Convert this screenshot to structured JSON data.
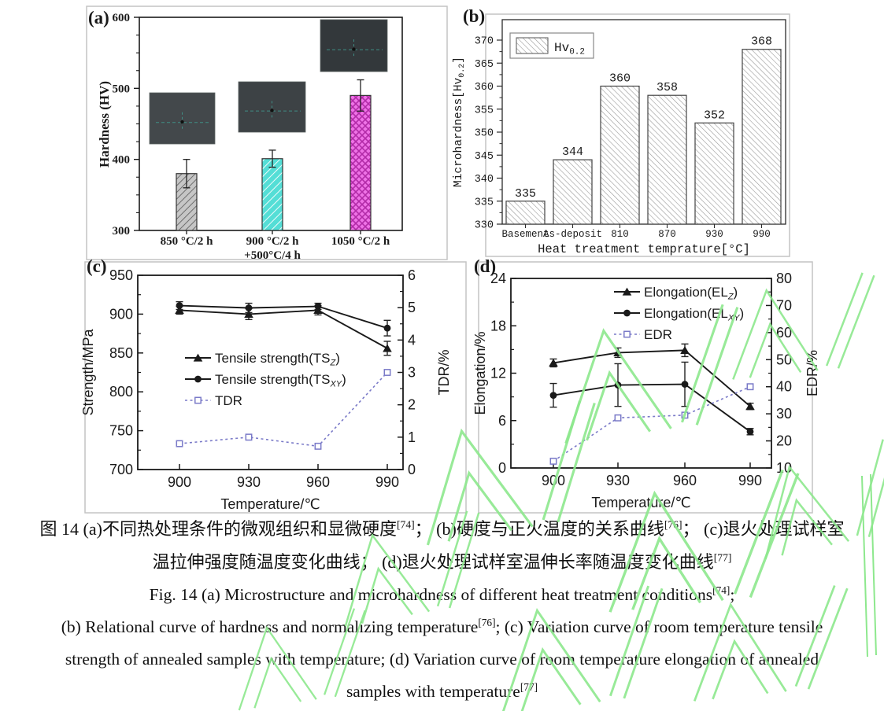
{
  "caption": {
    "zh_lines": [
      "图 14 (a)不同热处理条件的微观组织和显微硬度[74]； (b)硬度与正火温度的关系曲线[76]； (c)退火处理试样室",
      "温拉伸强度随温度变化曲线； (d)退火处理试样室温伸长率随温度变化曲线[77]"
    ],
    "en_lines": [
      "Fig. 14 (a) Microstructure and microhardness of different heat treatment conditions[74];",
      "(b) Relational curve of hardness and normalizing temperature[76]; (c) Variation curve of room temperature tensile",
      "strength of annealed samples with temperature; (d) Variation curve of room temperature elongation of annealed",
      "samples with temperature[77]"
    ]
  },
  "colors": {
    "axis_black": "#1a1a1a",
    "tdr_edr_line": "#7a7ac8",
    "bar_gray": "#c6c6c6",
    "bar_gray_hatch": "#555555",
    "bar_cyan": "#54ded6",
    "bar_magenta": "#ef72e6",
    "bar_magenta_hatch": "#b22ba8",
    "b_bar_bg": "#ffffff",
    "b_bar_hatch": "#999999",
    "panel_border": "#c4c4c4",
    "watermark_green": "#8de88d",
    "inset_fills": [
      "#43484b",
      "#3d4245",
      "#33383b"
    ]
  },
  "chart_data": [
    {
      "panel": "a",
      "panel_label": "(a)",
      "type": "bar",
      "ylabel": "Hardness (HV)",
      "ylim": [
        300,
        600
      ],
      "yticks": [
        300,
        400,
        500,
        600
      ],
      "categories": [
        "850 °C/2 h",
        "900 °C/2 h|+500°C/4 h",
        "1050 °C/2 h"
      ],
      "values": [
        380,
        401,
        490
      ],
      "errors": [
        20,
        12,
        22
      ],
      "bar_styles": [
        "gray-diagonal",
        "cyan-diagonal",
        "magenta-cross"
      ],
      "insets": "three dark optical micrograph thumbnails with indent marks",
      "grid": false
    },
    {
      "panel": "b",
      "panel_label": "(b)",
      "type": "bar",
      "legend": [
        "Hv~0.2~"
      ],
      "legend_position": "top-left-box",
      "ylabel": "Microhardness[Hv~0.2~]",
      "xlabel": "Heat treatment temprature[°C]",
      "ylim": [
        330,
        372
      ],
      "yticks": [
        330,
        335,
        340,
        345,
        350,
        355,
        360,
        365,
        370
      ],
      "categories": [
        "Basement",
        "As-deposit",
        "810",
        "870",
        "930",
        "990"
      ],
      "values": [
        335,
        344,
        360,
        358,
        352,
        368
      ],
      "value_labels": [
        335,
        344,
        360,
        358,
        352,
        368
      ],
      "bar_style": "gray-diagonal-on-white",
      "grid": false
    },
    {
      "panel": "c",
      "panel_label": "(c)",
      "type": "line",
      "x": [
        900,
        930,
        960,
        990
      ],
      "xlabel": "Temperature/℃",
      "ylabel_left": "Strength/MPa",
      "ylabel_right": "TDR/%",
      "ylim_left": [
        700,
        950
      ],
      "yticks_left": [
        700,
        750,
        800,
        850,
        900,
        950
      ],
      "ylim_right": [
        0,
        6
      ],
      "yticks_right": [
        0,
        1,
        2,
        3,
        4,
        5,
        6
      ],
      "legend_position": "middle-left",
      "series": [
        {
          "name": "Tensile strength(TS~Z~)",
          "axis": "left",
          "marker": "triangle",
          "line": "solid",
          "values": [
            905,
            900,
            905,
            856
          ],
          "errors": [
            5,
            7,
            6,
            9
          ]
        },
        {
          "name": "Tensile strength(TS~XY~)",
          "axis": "left",
          "marker": "circle",
          "line": "solid",
          "values": [
            911,
            908,
            910,
            882
          ],
          "errors": [
            5,
            6,
            4,
            10
          ]
        },
        {
          "name": "TDR",
          "axis": "right",
          "marker": "open-square",
          "line": "dashed",
          "values": [
            0.8,
            1.0,
            0.72,
            3.0
          ],
          "errors": [
            0,
            0,
            0,
            0
          ]
        }
      ],
      "grid": false
    },
    {
      "panel": "d",
      "panel_label": "(d)",
      "type": "line",
      "x": [
        900,
        930,
        960,
        990
      ],
      "xlabel": "Temperature/℃",
      "ylabel_left": "Elongation/%",
      "ylabel_right": "EDR/%",
      "ylim_left": [
        0,
        24
      ],
      "yticks_left": [
        0,
        6,
        12,
        18,
        24
      ],
      "ylim_right": [
        10,
        80
      ],
      "yticks_right": [
        10,
        20,
        30,
        40,
        50,
        60,
        70,
        80
      ],
      "legend_position": "top-center",
      "series": [
        {
          "name": "Elongation(EL~Z~)",
          "axis": "left",
          "marker": "triangle",
          "line": "solid",
          "values": [
            13.3,
            14.6,
            14.9,
            7.8
          ],
          "errors": [
            0.5,
            0.6,
            0.8,
            0.4
          ]
        },
        {
          "name": "Elongation(EL~XY~)",
          "axis": "left",
          "marker": "circle",
          "line": "solid",
          "values": [
            9.2,
            10.5,
            10.6,
            4.6
          ],
          "errors": [
            1.5,
            2.7,
            2.8,
            0.4
          ]
        },
        {
          "name": "EDR",
          "axis": "right",
          "marker": "open-square",
          "line": "dashed",
          "values": [
            12.5,
            28.5,
            29.5,
            40
          ],
          "errors": [
            0,
            0,
            0,
            0
          ]
        }
      ],
      "grid": false
    }
  ]
}
